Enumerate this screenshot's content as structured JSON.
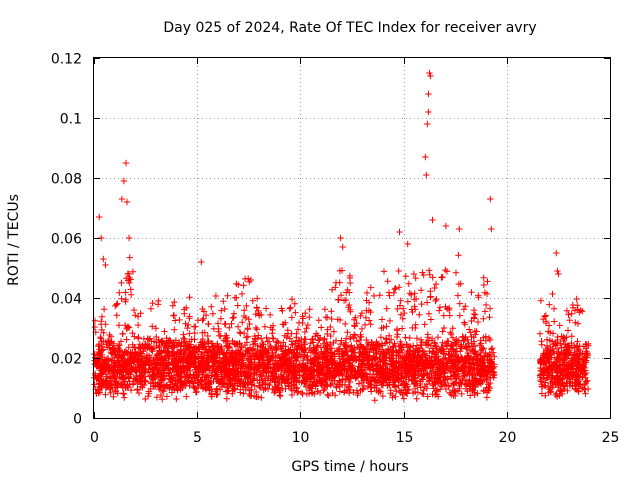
{
  "chart_data": {
    "type": "scatter",
    "title": "Day 025 of 2024, Rate Of TEC Index for receiver avry",
    "xlabel": "GPS time / hours",
    "ylabel": "ROTI / TECUs",
    "xlim": [
      0,
      25
    ],
    "ylim": [
      0,
      0.12
    ],
    "xticks": [
      0,
      5,
      10,
      15,
      20,
      25
    ],
    "xtick_labels": [
      "0",
      "5",
      "10",
      "15",
      "20",
      "25"
    ],
    "yticks": [
      0,
      0.02,
      0.04,
      0.06,
      0.08,
      0.1,
      0.12
    ],
    "ytick_labels": [
      "0",
      "0.02",
      "0.04",
      "0.06",
      "0.08",
      "0.1",
      "0.12"
    ],
    "grid": true,
    "marker": "plus",
    "color": "#ff0000",
    "data_gap_hours": [
      19.4,
      21.6
    ],
    "series": [
      {
        "name": "ROTI",
        "points": [
          [
            0.25,
            0.067
          ],
          [
            0.35,
            0.06
          ],
          [
            0.45,
            0.053
          ],
          [
            0.55,
            0.051
          ],
          [
            1.35,
            0.073
          ],
          [
            1.45,
            0.079
          ],
          [
            1.55,
            0.085
          ],
          [
            1.6,
            0.072
          ],
          [
            1.7,
            0.06
          ],
          [
            5.2,
            0.052
          ],
          [
            7.6,
            0.046
          ],
          [
            11.95,
            0.06
          ],
          [
            12.05,
            0.057
          ],
          [
            14.8,
            0.062
          ],
          [
            15.2,
            0.058
          ],
          [
            15.5,
            0.048
          ],
          [
            16.05,
            0.087
          ],
          [
            16.1,
            0.081
          ],
          [
            16.15,
            0.098
          ],
          [
            16.2,
            0.102
          ],
          [
            16.2,
            0.108
          ],
          [
            16.25,
            0.115
          ],
          [
            16.3,
            0.114
          ],
          [
            16.4,
            0.066
          ],
          [
            17.05,
            0.064
          ],
          [
            17.7,
            0.063
          ],
          [
            19.2,
            0.073
          ],
          [
            19.25,
            0.063
          ],
          [
            22.4,
            0.055
          ],
          [
            22.45,
            0.049
          ],
          [
            22.5,
            0.048
          ]
        ]
      }
    ]
  }
}
